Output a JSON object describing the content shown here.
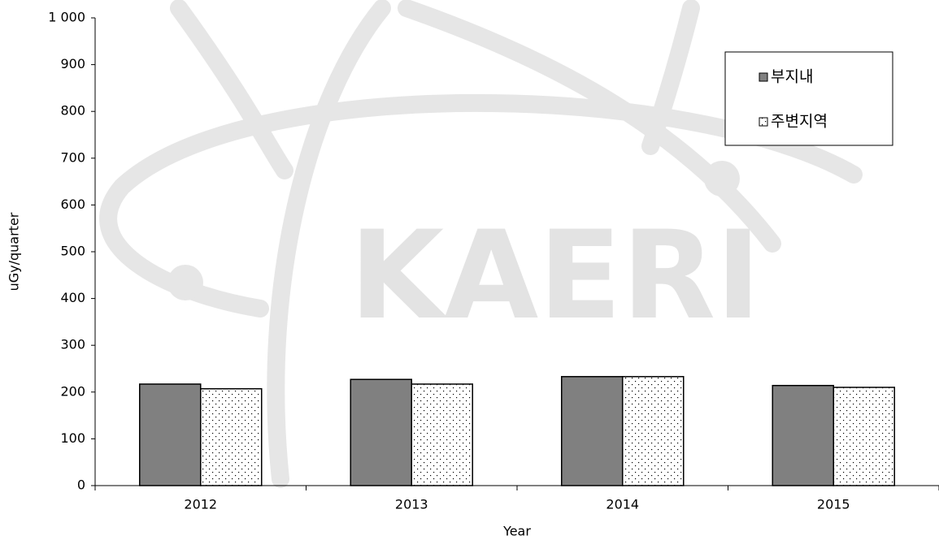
{
  "chart_data": {
    "type": "bar",
    "watermark": "KAERI",
    "x_label": "Year",
    "y_label": "uGy/quarter",
    "categories": [
      "2012",
      "2013",
      "2014",
      "2015"
    ],
    "series": [
      {
        "name": "부지내",
        "color": "#808080",
        "values": [
          217,
          227,
          233,
          214
        ]
      },
      {
        "name": "주변지역",
        "color": "dotted",
        "values": [
          207,
          217,
          233,
          210
        ]
      }
    ],
    "ylim": [
      0,
      1000
    ],
    "yticks": [
      0,
      100,
      200,
      300,
      400,
      500,
      600,
      700,
      800,
      900,
      {
        "value": 1000,
        "label": "1 000"
      }
    ],
    "grid": false,
    "legend": "upper-right"
  }
}
